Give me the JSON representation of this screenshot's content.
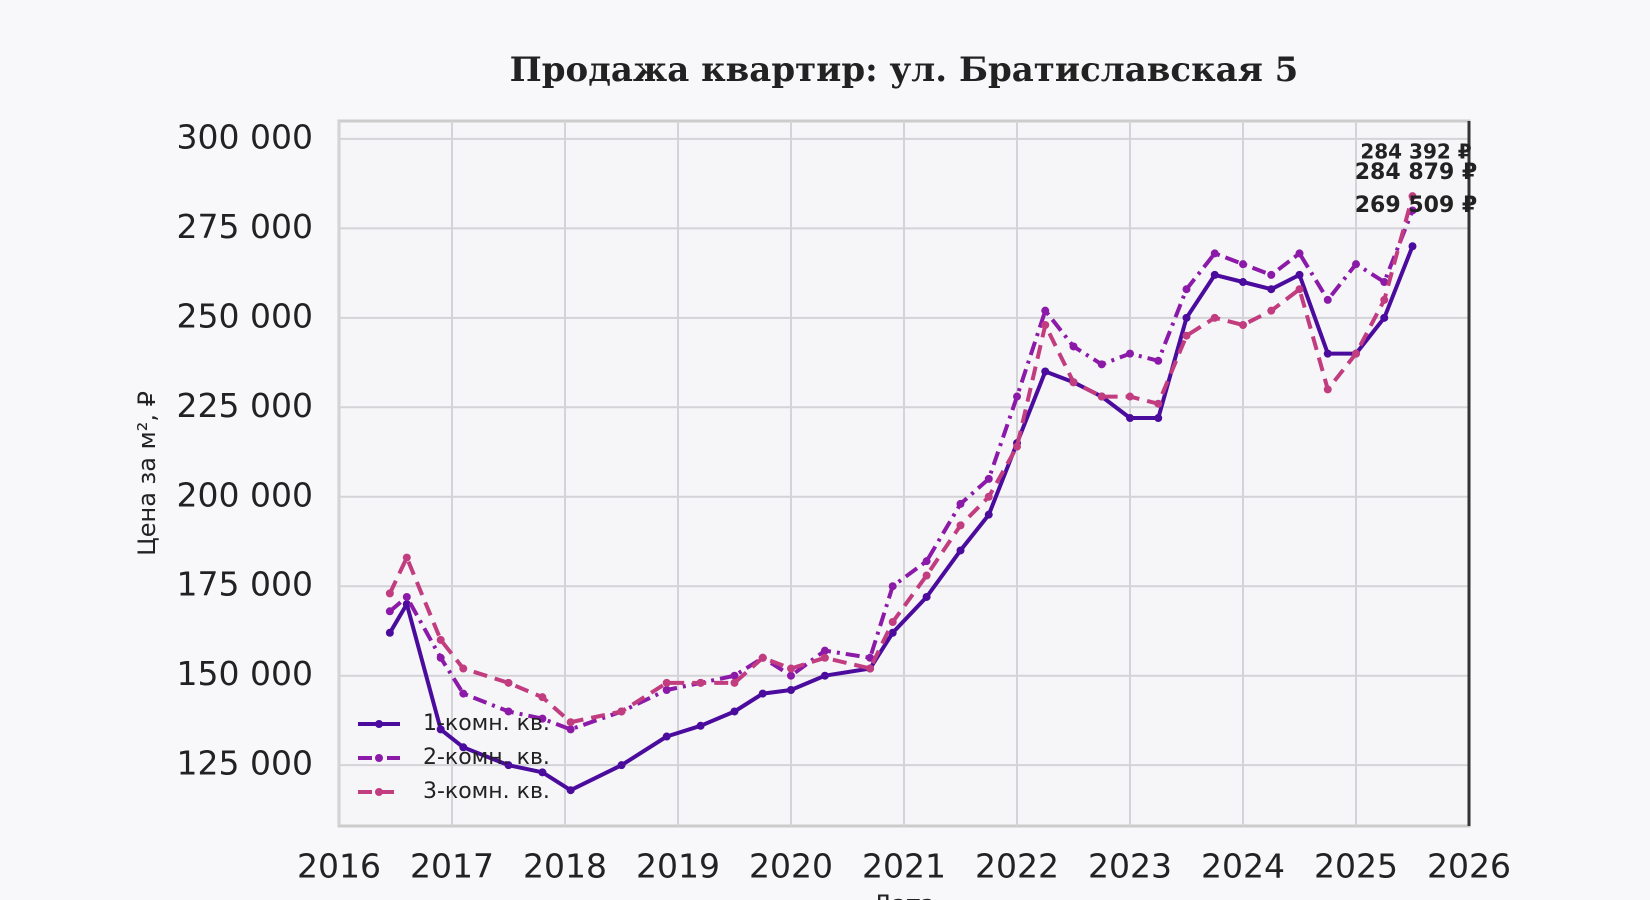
{
  "chart_data": {
    "type": "line",
    "title": "Продажа квартир: ул. Братиславская 5",
    "xlabel": "Дата",
    "ylabel": "Цена за м², ₽",
    "x": [
      2016.45,
      2016.6,
      2016.9,
      2017.1,
      2017.5,
      2017.8,
      2018.05,
      2018.5,
      2018.9,
      2019.2,
      2019.5,
      2019.75,
      2020.0,
      2020.3,
      2020.7,
      2020.9,
      2021.2,
      2021.5,
      2021.75,
      2022.0,
      2022.25,
      2022.5,
      2022.75,
      2023.0,
      2023.25,
      2023.5,
      2023.75,
      2024.0,
      2024.25,
      2024.5,
      2024.75,
      2025.0,
      2025.25,
      2025.5
    ],
    "series": [
      {
        "name": "1-комн. кв.",
        "color": "#4b0c9e",
        "dash": "solid",
        "values": [
          162000,
          170000,
          135000,
          130000,
          125000,
          123000,
          118000,
          125000,
          133000,
          136000,
          140000,
          145000,
          146000,
          150000,
          152000,
          162000,
          172000,
          185000,
          195000,
          215000,
          235000,
          232000,
          228000,
          222000,
          222000,
          250000,
          262000,
          260000,
          258000,
          262000,
          240000,
          240000,
          250000,
          270000
        ]
      },
      {
        "name": "2-комн. кв.",
        "color": "#8c1aa8",
        "dash": "dashdot",
        "values": [
          168000,
          172000,
          155000,
          145000,
          140000,
          138000,
          135000,
          140000,
          146000,
          148000,
          150000,
          155000,
          150000,
          157000,
          155000,
          175000,
          182000,
          198000,
          205000,
          228000,
          252000,
          242000,
          237000,
          240000,
          238000,
          258000,
          268000,
          265000,
          262000,
          268000,
          255000,
          265000,
          260000,
          280000
        ]
      },
      {
        "name": "3-комн. кв.",
        "color": "#c23d80",
        "dash": "dashed",
        "values": [
          173000,
          183000,
          160000,
          152000,
          148000,
          144000,
          137000,
          140000,
          148000,
          148000,
          148000,
          155000,
          152000,
          155000,
          152000,
          165000,
          178000,
          192000,
          200000,
          214000,
          248000,
          232000,
          228000,
          228000,
          226000,
          245000,
          250000,
          248000,
          252000,
          258000,
          230000,
          240000,
          255000,
          284000
        ]
      }
    ],
    "annotations": [
      {
        "text": "284 392 ₽",
        "color": "#d0506a"
      },
      {
        "text": "284 879 ₽",
        "color": "#f0903a"
      },
      {
        "text": "269 509 ₽",
        "color": "#7a14a0"
      }
    ],
    "xlim": [
      2016,
      2026
    ],
    "xticks": [
      2016,
      2017,
      2018,
      2019,
      2020,
      2021,
      2022,
      2023,
      2024,
      2025,
      2026
    ],
    "ylim": [
      108000,
      305000
    ],
    "yticks": [
      {
        "value": 125000,
        "label": "125 000"
      },
      {
        "value": 150000,
        "label": "150 000"
      },
      {
        "value": 175000,
        "label": "175 000"
      },
      {
        "value": 200000,
        "label": "200 000"
      },
      {
        "value": 225000,
        "label": "225 000"
      },
      {
        "value": 250000,
        "label": "250 000"
      },
      {
        "value": 275000,
        "label": "275 000"
      },
      {
        "value": 300000,
        "label": "300 000"
      }
    ],
    "grid": true,
    "legend": "lower left"
  }
}
